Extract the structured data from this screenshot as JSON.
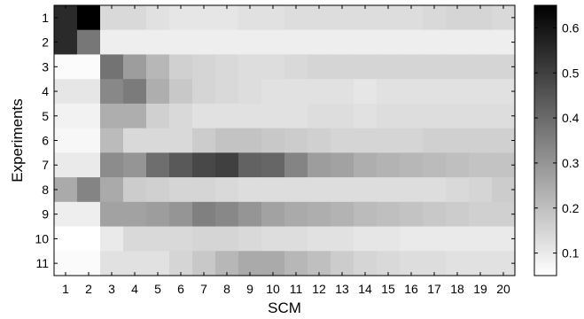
{
  "chart_data": {
    "type": "heatmap",
    "xlabel": "SCM",
    "ylabel": "Experiments",
    "x_ticks": [
      "1",
      "2",
      "3",
      "4",
      "5",
      "6",
      "7",
      "8",
      "9",
      "10",
      "11",
      "12",
      "13",
      "14",
      "15",
      "16",
      "17",
      "18",
      "19",
      "20"
    ],
    "y_ticks": [
      "1",
      "2",
      "3",
      "4",
      "5",
      "6",
      "7",
      "8",
      "9",
      "10",
      "11"
    ],
    "colorbar": {
      "colormap": "gray_reversed",
      "min": 0.05,
      "max": 0.65,
      "ticks": [
        0.1,
        0.2,
        0.3,
        0.4,
        0.5,
        0.6
      ],
      "tick_labels": [
        "0.1",
        "0.2",
        "0.3",
        "0.4",
        "0.5",
        "0.6"
      ]
    },
    "values": [
      [
        0.55,
        0.65,
        0.14,
        0.14,
        0.12,
        0.11,
        0.11,
        0.11,
        0.12,
        0.12,
        0.13,
        0.13,
        0.13,
        0.13,
        0.13,
        0.13,
        0.14,
        0.15,
        0.15,
        0.14
      ],
      [
        0.55,
        0.37,
        0.09,
        0.09,
        0.09,
        0.09,
        0.09,
        0.09,
        0.09,
        0.09,
        0.09,
        0.09,
        0.09,
        0.09,
        0.09,
        0.09,
        0.09,
        0.09,
        0.09,
        0.09
      ],
      [
        0.06,
        0.06,
        0.38,
        0.28,
        0.22,
        0.16,
        0.15,
        0.14,
        0.13,
        0.13,
        0.14,
        0.15,
        0.15,
        0.15,
        0.15,
        0.15,
        0.15,
        0.15,
        0.15,
        0.15
      ],
      [
        0.11,
        0.11,
        0.33,
        0.36,
        0.24,
        0.18,
        0.15,
        0.14,
        0.13,
        0.12,
        0.12,
        0.12,
        0.12,
        0.11,
        0.12,
        0.12,
        0.12,
        0.12,
        0.12,
        0.12
      ],
      [
        0.08,
        0.08,
        0.24,
        0.24,
        0.16,
        0.14,
        0.12,
        0.12,
        0.12,
        0.12,
        0.12,
        0.13,
        0.13,
        0.12,
        0.13,
        0.13,
        0.13,
        0.13,
        0.13,
        0.13
      ],
      [
        0.07,
        0.07,
        0.21,
        0.14,
        0.14,
        0.14,
        0.17,
        0.19,
        0.19,
        0.18,
        0.17,
        0.16,
        0.15,
        0.15,
        0.15,
        0.15,
        0.16,
        0.16,
        0.16,
        0.16
      ],
      [
        0.1,
        0.1,
        0.32,
        0.3,
        0.39,
        0.44,
        0.48,
        0.5,
        0.42,
        0.41,
        0.34,
        0.28,
        0.27,
        0.24,
        0.23,
        0.22,
        0.21,
        0.2,
        0.19,
        0.19
      ],
      [
        0.25,
        0.34,
        0.25,
        0.17,
        0.16,
        0.15,
        0.15,
        0.14,
        0.13,
        0.13,
        0.13,
        0.13,
        0.13,
        0.13,
        0.13,
        0.13,
        0.13,
        0.14,
        0.15,
        0.17
      ],
      [
        0.09,
        0.09,
        0.27,
        0.27,
        0.28,
        0.3,
        0.35,
        0.33,
        0.3,
        0.27,
        0.25,
        0.24,
        0.23,
        0.21,
        0.2,
        0.19,
        0.18,
        0.17,
        0.16,
        0.16
      ],
      [
        0.05,
        0.05,
        0.1,
        0.14,
        0.14,
        0.14,
        0.15,
        0.15,
        0.14,
        0.13,
        0.13,
        0.12,
        0.12,
        0.11,
        0.11,
        0.1,
        0.1,
        0.1,
        0.1,
        0.1
      ],
      [
        0.06,
        0.06,
        0.12,
        0.12,
        0.12,
        0.15,
        0.18,
        0.22,
        0.25,
        0.25,
        0.22,
        0.2,
        0.17,
        0.15,
        0.14,
        0.13,
        0.13,
        0.12,
        0.12,
        0.12
      ]
    ]
  }
}
